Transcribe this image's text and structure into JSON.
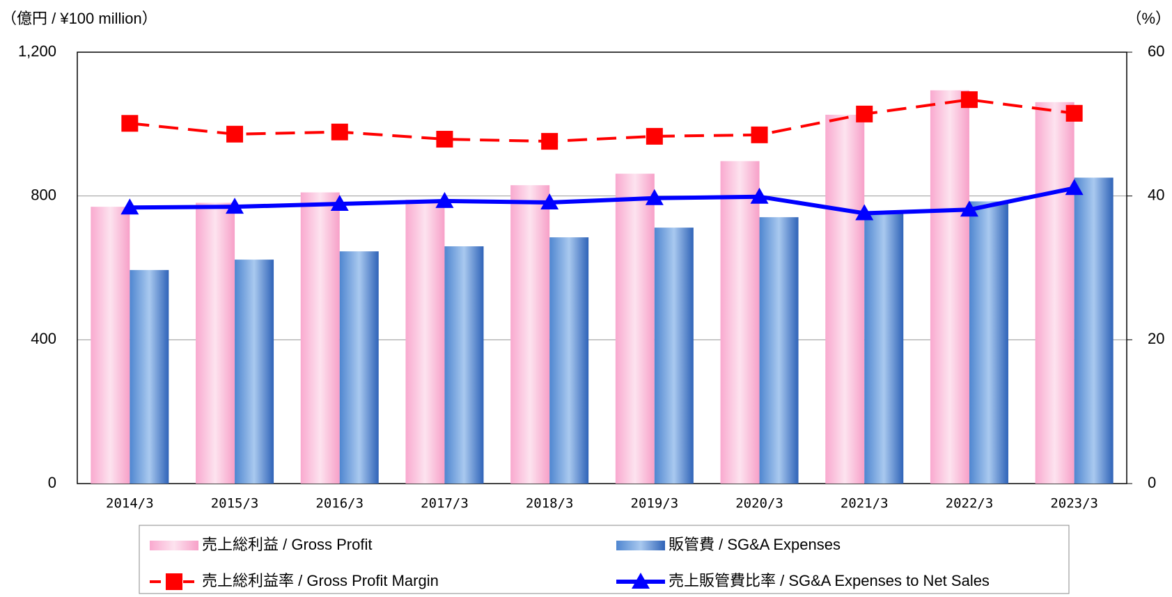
{
  "chart_data": {
    "type": "bar-line",
    "y_unit": "（億円 / ¥100 million）",
    "y2_unit": "（%）",
    "categories": [
      "2014/3",
      "2015/3",
      "2016/3",
      "2017/3",
      "2018/3",
      "2019/3",
      "2020/3",
      "2021/3",
      "2022/3",
      "2023/3"
    ],
    "series": [
      {
        "name": "売上総利益 / Gross Profit",
        "type": "bar",
        "color": "#f9a9cf",
        "values": [
          770,
          781,
          810,
          790,
          830,
          862,
          897,
          1026,
          1094,
          1061
        ]
      },
      {
        "name": "販管費 / SG&A Expenses",
        "type": "bar",
        "color": "#4f86d0",
        "values": [
          594,
          623,
          646,
          660,
          685,
          712,
          741,
          752,
          785,
          851
        ]
      },
      {
        "name": "売上総利益率 / Gross Profit Margin",
        "type": "line",
        "axis": "y2",
        "marker": "square",
        "dashed": true,
        "color": "#ff0000",
        "values": [
          50.1,
          48.6,
          48.9,
          47.9,
          47.6,
          48.3,
          48.5,
          51.4,
          53.4,
          51.5
        ]
      },
      {
        "name": "売上販管費比率 / SG&A Expenses to Net Sales",
        "type": "line",
        "axis": "y2",
        "marker": "triangle",
        "dashed": false,
        "color": "#0000ff",
        "values": [
          38.4,
          38.5,
          38.9,
          39.3,
          39.1,
          39.7,
          39.9,
          37.6,
          38.1,
          41.1
        ]
      }
    ],
    "ylim": [
      0,
      1200
    ],
    "yticks": [
      0,
      400,
      800,
      {
        "value": 1200,
        "label": "1,200"
      }
    ],
    "y2lim": [
      0,
      60
    ],
    "y2ticks": [
      0,
      20,
      40,
      60
    ],
    "grid": true
  }
}
